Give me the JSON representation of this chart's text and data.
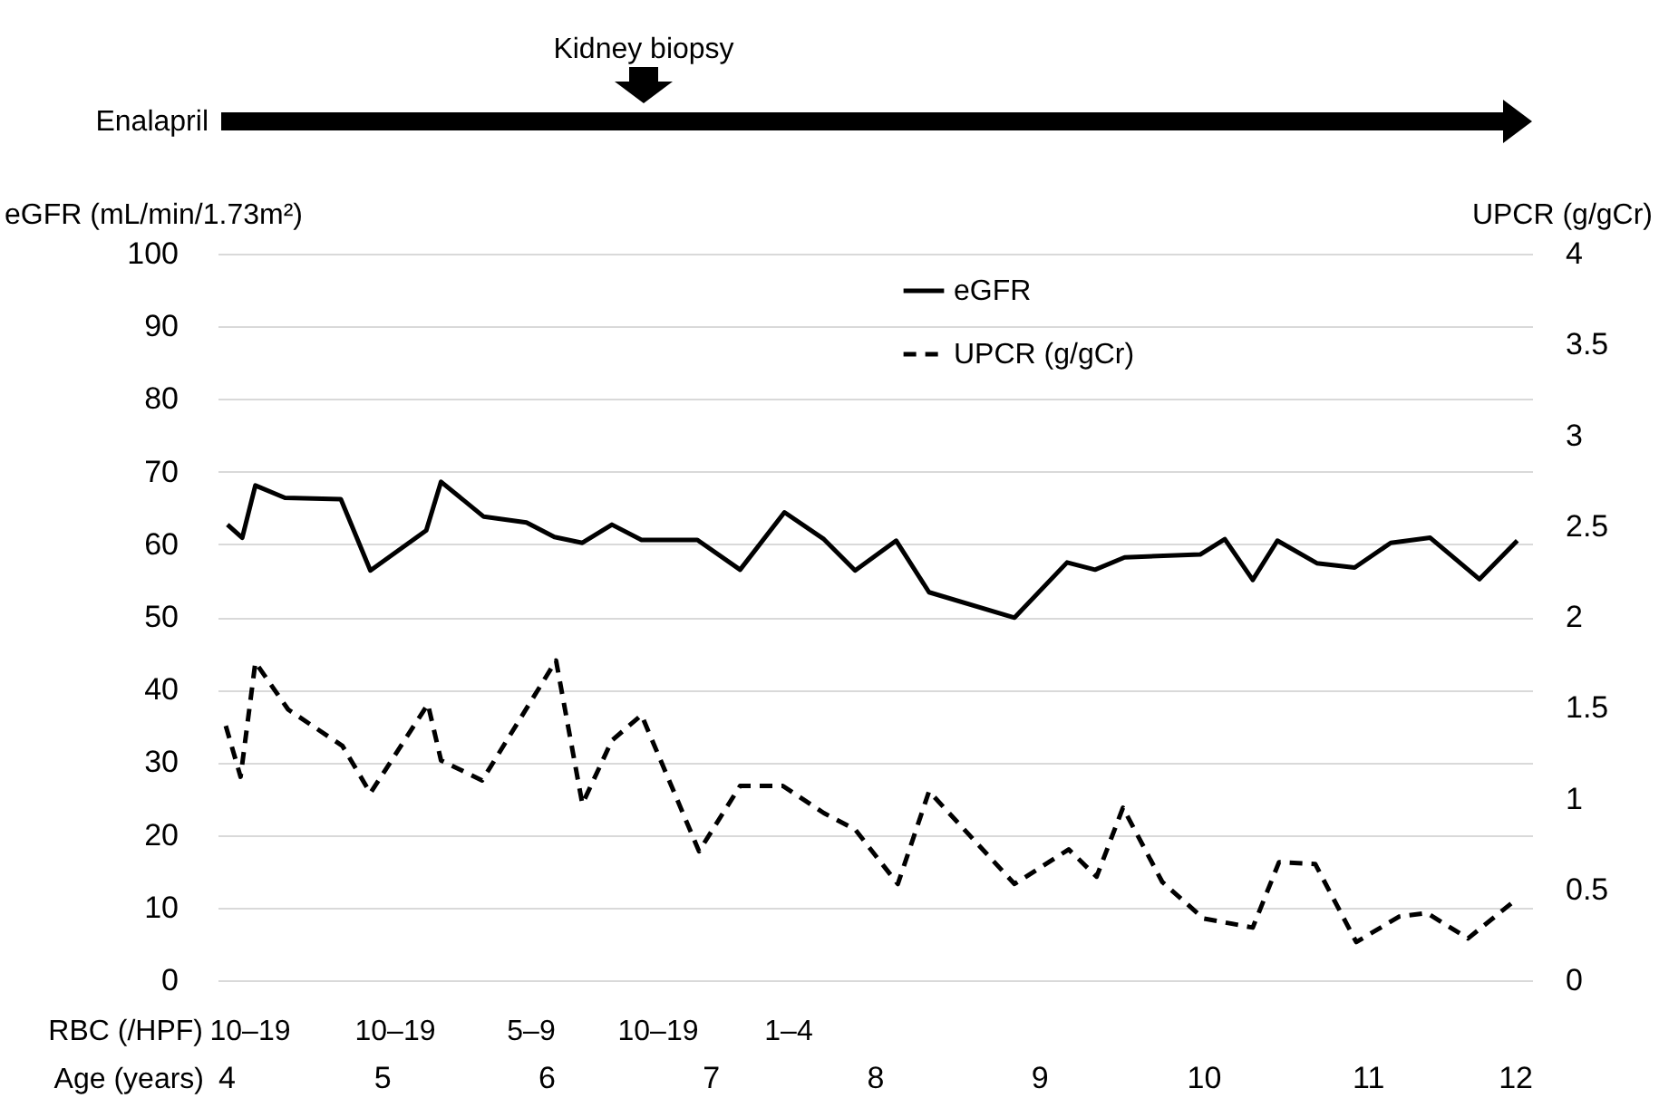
{
  "chart_data": {
    "type": "line",
    "xlabel": "Age (years)",
    "ylabel": "eGFR (mL/min/1.73m²)",
    "y2label": "UPCR (g/gCr)",
    "xlim": [
      4,
      12
    ],
    "xticks": [
      4,
      5,
      6,
      7,
      8,
      9,
      10,
      11,
      12
    ],
    "ylim": [
      0,
      100
    ],
    "yticks": [
      0,
      10,
      20,
      30,
      40,
      50,
      60,
      70,
      80,
      90,
      100
    ],
    "y2lim": [
      0,
      4
    ],
    "y2ticks": [
      0,
      0.5,
      1,
      1.5,
      2,
      2.5,
      3,
      3.5,
      4
    ],
    "grid": "y",
    "legend": "top right",
    "marker": "none",
    "series": [
      {
        "name": "eGFR",
        "color": "#000000",
        "line_style": "solid",
        "x": [
          4.06,
          4.15,
          4.23,
          4.41,
          4.75,
          4.93,
          5.27,
          5.36,
          5.62,
          5.88,
          6.05,
          6.22,
          6.4,
          6.58,
          6.92,
          7.18,
          7.45,
          7.69,
          7.88,
          8.13,
          8.33,
          8.85,
          9.17,
          9.34,
          9.52,
          9.98,
          10.13,
          10.3,
          10.45,
          10.69,
          10.92,
          11.14,
          11.38,
          11.68,
          11.91
        ],
        "values": [
          62.7,
          60.9,
          68.1,
          66.4,
          66.2,
          56.4,
          61.9,
          68.6,
          63.8,
          63.0,
          61.0,
          60.2,
          62.7,
          60.6,
          60.6,
          56.5,
          64.4,
          60.7,
          56.4,
          60.5,
          53.4,
          49.9,
          57.5,
          56.5,
          58.2,
          58.6,
          60.7,
          55.1,
          60.5,
          57.4,
          56.8,
          60.2,
          60.9,
          55.2,
          60.5
        ]
      },
      {
        "name": "UPCR (g/gCr)",
        "color": "#000000",
        "line_style": "dashed",
        "axis": "y2",
        "x": [
          4.05,
          4.14,
          4.23,
          4.43,
          4.76,
          4.93,
          5.28,
          5.36,
          5.61,
          6.06,
          6.22,
          6.4,
          6.58,
          6.93,
          7.18,
          7.44,
          7.69,
          7.88,
          8.14,
          8.33,
          8.85,
          9.18,
          9.35,
          9.51,
          9.75,
          10.0,
          10.3,
          10.46,
          10.68,
          10.93,
          11.19,
          11.36,
          11.61,
          11.91
        ],
        "values": [
          1.4,
          1.12,
          1.75,
          1.49,
          1.29,
          1.03,
          1.52,
          1.21,
          1.1,
          1.76,
          0.97,
          1.32,
          1.46,
          0.71,
          1.07,
          1.07,
          0.92,
          0.83,
          0.53,
          1.04,
          0.53,
          0.72,
          0.57,
          0.95,
          0.54,
          0.34,
          0.29,
          0.65,
          0.64,
          0.21,
          0.35,
          0.37,
          0.23,
          0.45
        ]
      }
    ],
    "bands": [
      {
        "axis": "x",
        "from": 4,
        "to": 12,
        "label": "Enalapril"
      }
    ],
    "annotations": [
      "Kidney biopsy",
      "RBC (/HPF)",
      "10–19",
      "10–19",
      "5–9",
      "10–19",
      "1–4"
    ]
  }
}
